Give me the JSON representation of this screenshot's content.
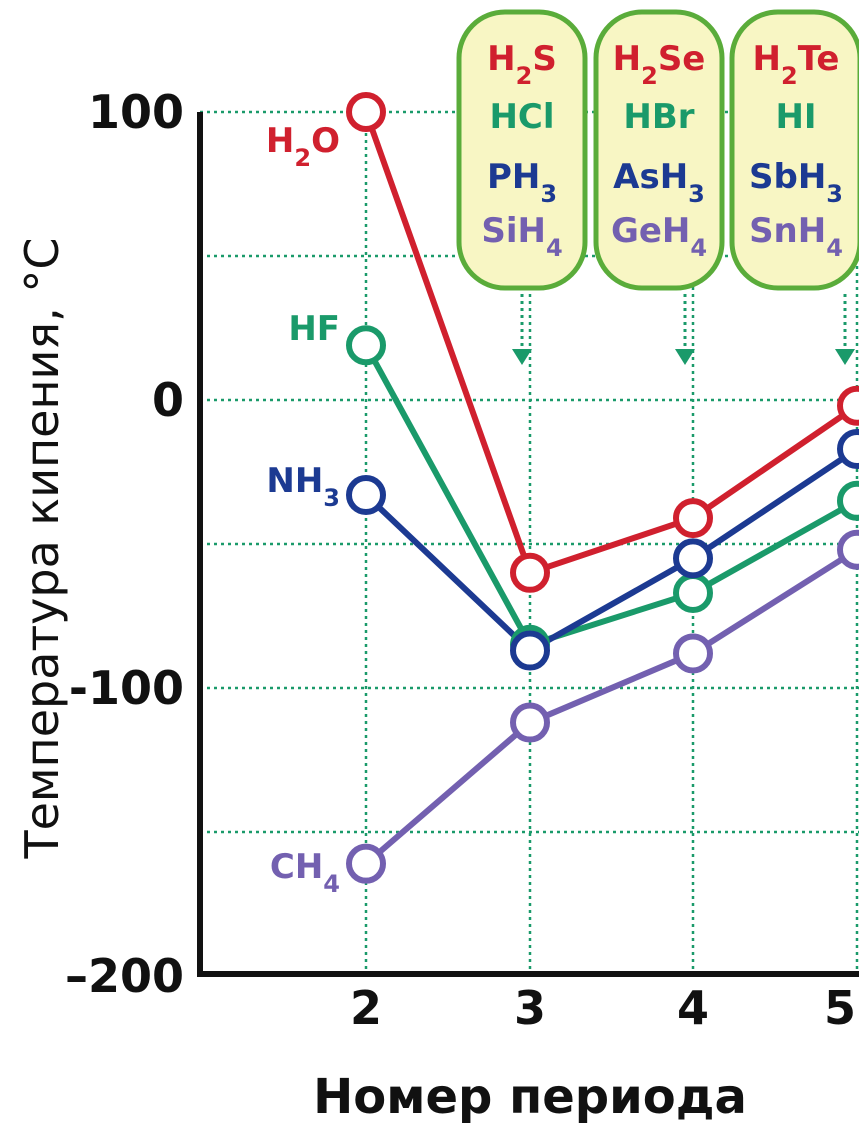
{
  "chart_data": {
    "type": "line",
    "ylabel": "Температура кипения, °C",
    "xlabel": "Номер периода",
    "x": [
      2,
      3,
      4,
      5
    ],
    "ylim": [
      -200,
      100
    ],
    "yticks": [
      "100",
      "0",
      "-100",
      "–200"
    ],
    "grid": true,
    "series": [
      {
        "name": "H2O group",
        "color": "#d0202e",
        "values": [
          100,
          -60,
          -41,
          -2
        ],
        "formulas": [
          {
            "main": "H",
            "sub": "2",
            "tail": "O"
          },
          {
            "main": "H",
            "sub": "2",
            "tail": "S"
          },
          {
            "main": "H",
            "sub": "2",
            "tail": "Se"
          },
          {
            "main": "H",
            "sub": "2",
            "tail": "Te"
          }
        ]
      },
      {
        "name": "HF group",
        "color": "#1a9a6a",
        "values": [
          19,
          -85,
          -67,
          -35
        ],
        "formulas": [
          {
            "main": "HF",
            "sub": "",
            "tail": ""
          },
          {
            "main": "HCl",
            "sub": "",
            "tail": ""
          },
          {
            "main": "HBr",
            "sub": "",
            "tail": ""
          },
          {
            "main": "HI",
            "sub": "",
            "tail": ""
          }
        ]
      },
      {
        "name": "NH3 group",
        "color": "#1c3a92",
        "values": [
          -33,
          -87,
          -55,
          -17
        ],
        "formulas": [
          {
            "main": "NH",
            "sub": "3",
            "tail": ""
          },
          {
            "main": "PH",
            "sub": "3",
            "tail": ""
          },
          {
            "main": "AsH",
            "sub": "3",
            "tail": ""
          },
          {
            "main": "SbH",
            "sub": "3",
            "tail": ""
          }
        ]
      },
      {
        "name": "CH4 group",
        "color": "#7360b0",
        "values": [
          -161,
          -112,
          -88,
          -52
        ],
        "formulas": [
          {
            "main": "CH",
            "sub": "4",
            "tail": ""
          },
          {
            "main": "SiH",
            "sub": "4",
            "tail": ""
          },
          {
            "main": "GeH",
            "sub": "4",
            "tail": ""
          },
          {
            "main": "SnH",
            "sub": "4",
            "tail": ""
          }
        ]
      }
    ]
  },
  "colors": {
    "box_fill": "#f8f6c4",
    "box_stroke": "#5aac3a",
    "grid": "#1a9a6a",
    "axis": "#111111"
  }
}
